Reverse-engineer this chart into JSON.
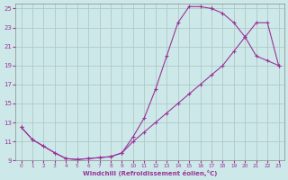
{
  "xlabel": "Windchill (Refroidissement éolien,°C)",
  "xlim": [
    -0.5,
    23.5
  ],
  "ylim": [
    9,
    25.5
  ],
  "xticks": [
    0,
    1,
    2,
    3,
    4,
    5,
    6,
    7,
    8,
    9,
    10,
    11,
    12,
    13,
    14,
    15,
    16,
    17,
    18,
    19,
    20,
    21,
    22,
    23
  ],
  "yticks": [
    9,
    11,
    13,
    15,
    17,
    19,
    21,
    23,
    25
  ],
  "background_color": "#cde8e8",
  "grid_color": "#b0c8c8",
  "line_color": "#993399",
  "curve1_x": [
    0,
    1,
    2,
    3,
    4,
    5,
    6,
    7,
    8,
    9,
    10,
    11,
    12,
    13,
    14,
    15,
    16,
    17
  ],
  "curve1_y": [
    12.5,
    11.2,
    10.5,
    9.8,
    9.2,
    9.1,
    9.2,
    9.3,
    9.4,
    9.8,
    11.5,
    13.5,
    16.5,
    20.0,
    23.5,
    25.2,
    25.2,
    25.0
  ],
  "curve2_x": [
    0,
    1,
    2,
    3,
    4,
    5,
    6,
    7,
    8,
    9,
    10,
    11,
    12,
    13,
    14,
    15,
    16,
    17,
    18,
    19,
    20,
    21,
    22,
    23
  ],
  "curve2_y": [
    12.5,
    11.2,
    10.5,
    9.8,
    9.2,
    9.1,
    9.2,
    9.3,
    9.4,
    9.8,
    11.0,
    12.0,
    13.0,
    14.0,
    15.0,
    16.0,
    17.0,
    18.0,
    19.0,
    20.5,
    22.0,
    23.5,
    23.5,
    19.0
  ],
  "curve3_x": [
    17,
    18,
    19,
    20,
    21,
    22,
    23
  ],
  "curve3_y": [
    25.0,
    24.5,
    23.5,
    22.0,
    20.0,
    19.5,
    19.0
  ]
}
